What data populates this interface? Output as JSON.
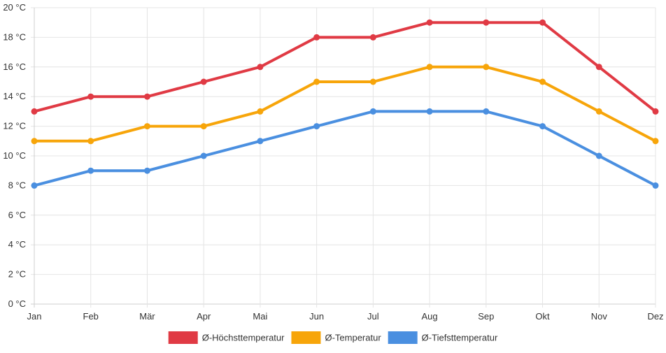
{
  "chart_data": {
    "type": "line",
    "title": "",
    "xlabel": "",
    "ylabel": "",
    "categories": [
      "Jan",
      "Feb",
      "Mär",
      "Apr",
      "Mai",
      "Jun",
      "Jul",
      "Aug",
      "Sep",
      "Okt",
      "Nov",
      "Dez"
    ],
    "ylim": [
      0,
      20
    ],
    "yticks": [
      0,
      2,
      4,
      6,
      8,
      10,
      12,
      14,
      16,
      18,
      20
    ],
    "ytick_labels": [
      "0 °C",
      "2 °C",
      "4 °C",
      "6 °C",
      "8 °C",
      "10 °C",
      "12 °C",
      "14 °C",
      "16 °C",
      "18 °C",
      "20 °C"
    ],
    "grid": true,
    "legend_position": "bottom",
    "series": [
      {
        "name": "Ø-Höchsttemperatur",
        "color": "#e03a44",
        "values": [
          13,
          14,
          14,
          15,
          16,
          18,
          18,
          19,
          19,
          19,
          16,
          13
        ]
      },
      {
        "name": "Ø-Temperatur",
        "color": "#f7a50a",
        "values": [
          11,
          11,
          12,
          12,
          13,
          15,
          15,
          16,
          16,
          15,
          13,
          11
        ]
      },
      {
        "name": "Ø-Tiefsttemperatur",
        "color": "#4a8fe0",
        "values": [
          8,
          9,
          9,
          10,
          11,
          12,
          13,
          13,
          13,
          12,
          10,
          8
        ]
      }
    ]
  }
}
